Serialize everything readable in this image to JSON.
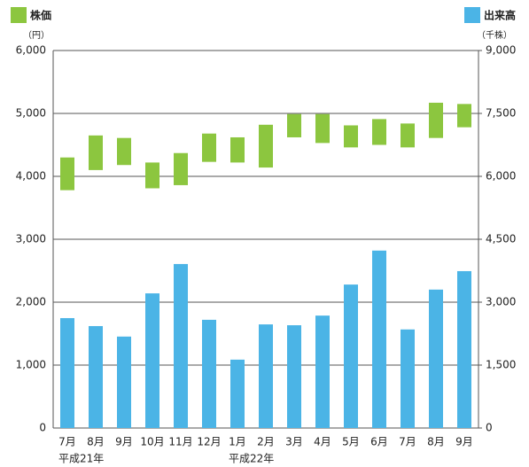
{
  "chart_data": {
    "type": "range-bar-volume",
    "y_unit": "（円）",
    "y2_unit": "（千株）",
    "categories": [
      "7月",
      "8月",
      "9月",
      "10月",
      "11月",
      "12月",
      "1月",
      "2月",
      "3月",
      "4月",
      "5月",
      "6月",
      "7月",
      "8月",
      "9月"
    ],
    "year_labels": [
      "平成21年",
      null,
      null,
      null,
      null,
      null,
      "平成22年",
      null,
      null,
      null,
      null,
      null,
      null,
      null,
      null
    ],
    "series": [
      {
        "name": "株価",
        "color": "#8cc63f",
        "low": [
          3780,
          4100,
          4180,
          3810,
          3860,
          4230,
          4220,
          4140,
          4620,
          4530,
          4460,
          4500,
          4460,
          4610,
          4780
        ],
        "high": [
          4300,
          4650,
          4610,
          4220,
          4370,
          4680,
          4620,
          4820,
          4990,
          4990,
          4810,
          4910,
          4840,
          5170,
          5150
        ]
      },
      {
        "name": "出来高",
        "color": "#4bb4e6",
        "axis": "y2",
        "values": [
          2620,
          2430,
          2180,
          3210,
          3910,
          2580,
          1630,
          2470,
          2450,
          2680,
          3420,
          4230,
          2350,
          3300,
          3740
        ]
      }
    ],
    "ylim": [
      0,
      6000
    ],
    "yticks": [
      0,
      {
        "value": 1000,
        "label": "1,000"
      },
      {
        "value": 2000,
        "label": "2,000"
      },
      {
        "value": 3000,
        "label": "3,000"
      },
      {
        "value": 4000,
        "label": "4,000"
      },
      {
        "value": 5000,
        "label": "5,000"
      },
      {
        "value": 6000,
        "label": "6,000"
      }
    ],
    "y2lim": [
      0,
      9000
    ],
    "y2ticks": [
      0,
      {
        "value": 1500,
        "label": "1,500"
      },
      {
        "value": 3000,
        "label": "3,000"
      },
      {
        "value": 4500,
        "label": "4,500"
      },
      {
        "value": 6000,
        "label": "6,000"
      },
      {
        "value": 7500,
        "label": "7,500"
      },
      {
        "value": 9000,
        "label": "9,000"
      }
    ],
    "grid": true
  }
}
